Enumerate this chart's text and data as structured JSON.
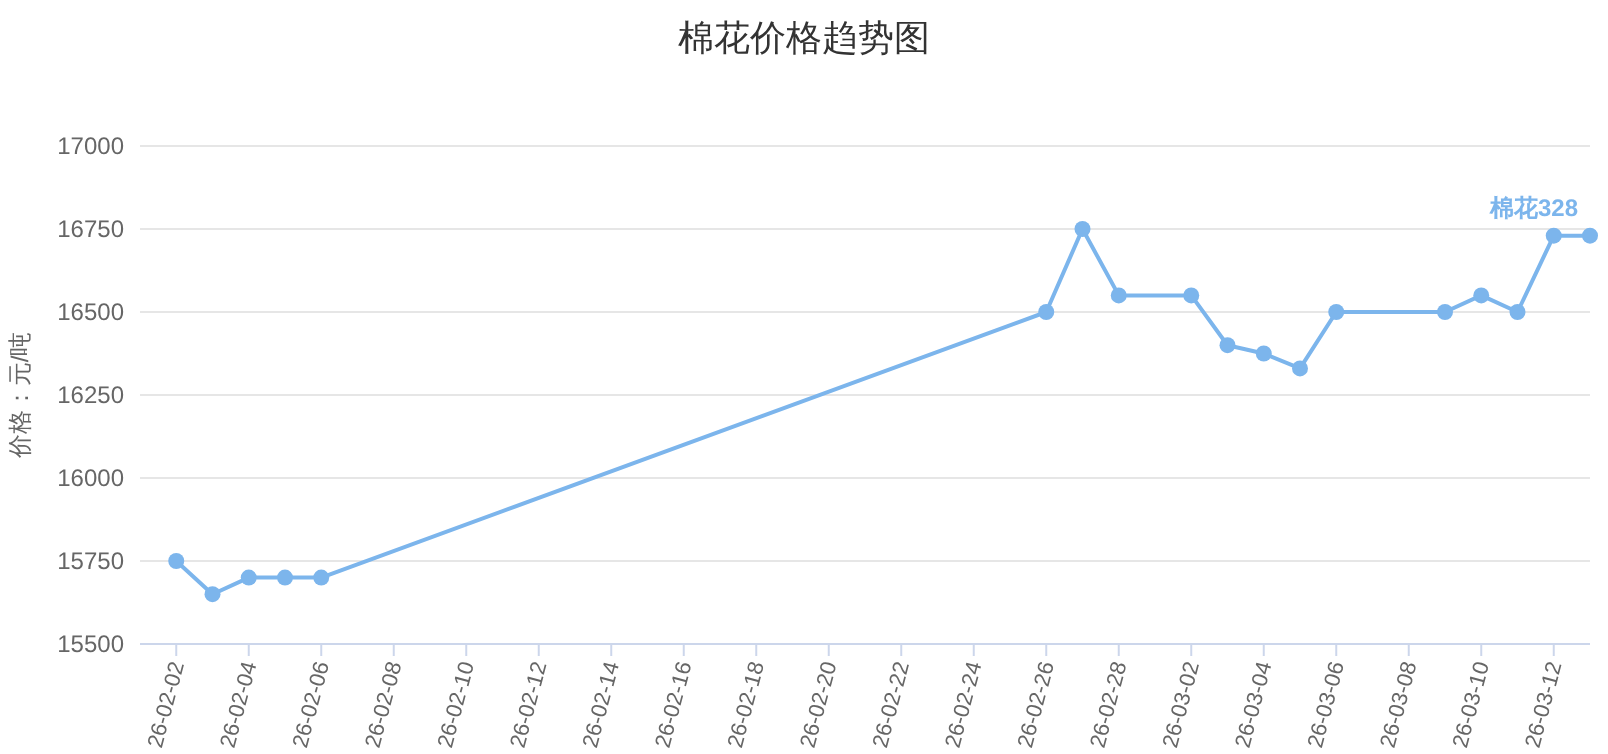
{
  "chart_data": {
    "type": "line",
    "title": "棉花价格趋势图",
    "ylabel": "价格：元/吨",
    "x": [
      "--02-02",
      "--02-03",
      "--02-04",
      "--02-05",
      "--02-06",
      "--02-26",
      "--02-27",
      "--02-28",
      "--03-02",
      "--03-03",
      "--03-04",
      "--03-05",
      "--03-06",
      "--03-09",
      "--03-10",
      "--03-11",
      "--03-12",
      "--03-13"
    ],
    "series": [
      {
        "name": "棉花328",
        "color": "#7cb5ec",
        "values": [
          15750,
          15650,
          15700,
          15700,
          15700,
          16500,
          16750,
          16550,
          16550,
          16400,
          16375,
          16330,
          16500,
          16500,
          16550,
          16500,
          16730,
          16730
        ]
      }
    ],
    "xlim": [
      "--02-01",
      "--03-13"
    ],
    "xticks": [
      {
        "value": "--02-02",
        "label": "26-02-02"
      },
      {
        "value": "--02-04",
        "label": "26-02-04"
      },
      {
        "value": "--02-06",
        "label": "26-02-06"
      },
      {
        "value": "--02-08",
        "label": "26-02-08"
      },
      {
        "value": "--02-10",
        "label": "26-02-10"
      },
      {
        "value": "--02-12",
        "label": "26-02-12"
      },
      {
        "value": "--02-14",
        "label": "26-02-14"
      },
      {
        "value": "--02-16",
        "label": "26-02-16"
      },
      {
        "value": "--02-18",
        "label": "26-02-18"
      },
      {
        "value": "--02-20",
        "label": "26-02-20"
      },
      {
        "value": "--02-22",
        "label": "26-02-22"
      },
      {
        "value": "--02-24",
        "label": "26-02-24"
      },
      {
        "value": "--02-26",
        "label": "26-02-26"
      },
      {
        "value": "--02-28",
        "label": "26-02-28"
      },
      {
        "value": "--03-02",
        "label": "26-03-02"
      },
      {
        "value": "--03-04",
        "label": "26-03-04"
      },
      {
        "value": "--03-06",
        "label": "26-03-06"
      },
      {
        "value": "--03-08",
        "label": "26-03-08"
      },
      {
        "value": "--03-10",
        "label": "26-03-10"
      },
      {
        "value": "--03-12",
        "label": "26-03-12"
      }
    ],
    "ylim": [
      15500,
      17000
    ],
    "yticks": [
      15500,
      15750,
      16000,
      16250,
      16500,
      16750,
      17000
    ],
    "grid": "y",
    "legend": false,
    "marker": "circle",
    "line_style": "solid"
  }
}
